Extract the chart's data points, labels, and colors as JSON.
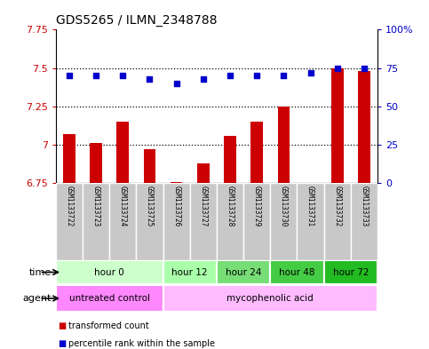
{
  "title": "GDS5265 / ILMN_2348788",
  "samples": [
    "GSM1133722",
    "GSM1133723",
    "GSM1133724",
    "GSM1133725",
    "GSM1133726",
    "GSM1133727",
    "GSM1133728",
    "GSM1133729",
    "GSM1133730",
    "GSM1133731",
    "GSM1133732",
    "GSM1133733"
  ],
  "bar_values": [
    7.07,
    7.01,
    7.15,
    6.97,
    6.76,
    6.88,
    7.06,
    7.15,
    7.25,
    6.75,
    7.5,
    7.48
  ],
  "dot_values": [
    70,
    70,
    70,
    68,
    65,
    68,
    70,
    70,
    70,
    72,
    75,
    75
  ],
  "bar_color": "#cc0000",
  "dot_color": "#0000cc",
  "ylim_left": [
    6.75,
    7.75
  ],
  "ylim_right": [
    0,
    100
  ],
  "yticks_left": [
    6.75,
    7.0,
    7.25,
    7.5,
    7.75
  ],
  "yticks_right": [
    0,
    25,
    50,
    75,
    100
  ],
  "ytick_labels_left": [
    "6.75",
    "7",
    "7.25",
    "7.5",
    "7.75"
  ],
  "ytick_labels_right": [
    "0",
    "25",
    "50",
    "75",
    "100%"
  ],
  "dotted_lines": [
    7.0,
    7.25,
    7.5
  ],
  "time_groups": [
    {
      "label": "hour 0",
      "start": 0,
      "end": 4,
      "color": "#ccffcc"
    },
    {
      "label": "hour 12",
      "start": 4,
      "end": 6,
      "color": "#aaffaa"
    },
    {
      "label": "hour 24",
      "start": 6,
      "end": 8,
      "color": "#77dd77"
    },
    {
      "label": "hour 48",
      "start": 8,
      "end": 10,
      "color": "#44cc44"
    },
    {
      "label": "hour 72",
      "start": 10,
      "end": 12,
      "color": "#22bb22"
    }
  ],
  "agent_groups": [
    {
      "label": "untreated control",
      "start": 0,
      "end": 4,
      "color": "#ff88ff"
    },
    {
      "label": "mycophenolic acid",
      "start": 4,
      "end": 12,
      "color": "#ffbbff"
    }
  ],
  "legend_bar_label": "transformed count",
  "legend_dot_label": "percentile rank within the sample",
  "bar_width": 0.45,
  "sample_bg_color": "#c8c8c8",
  "sample_border_color": "#ffffff",
  "plot_bg_color": "#ffffff"
}
